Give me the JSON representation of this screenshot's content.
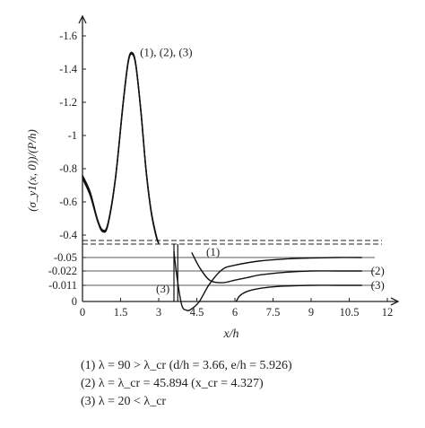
{
  "chart_data": {
    "type": "line",
    "title": "",
    "xlabel": "x/h",
    "ylabel": "(σ_y1(x, 0))/(P/h)",
    "xlim": [
      0,
      12
    ],
    "x_ticks": [
      "0",
      "1.5",
      "3",
      "4.5",
      "6",
      "7.5",
      "9",
      "10.5",
      "12"
    ],
    "y_ticks_upper": [
      "-1.6",
      "-1.4",
      "-1.2",
      "-1",
      "-0.8",
      "-0.6",
      "-0.4"
    ],
    "y_ticks_lower": [
      "-0.05",
      "-0.022",
      "-0.011",
      "0"
    ],
    "y_axis_note": "broken y axis: upper segment runs -1.6 to -0.4 (linear), lower segment shows -0.05, -0.022, -0.011, 0",
    "peak_annotation": "(1), (2), (3)",
    "series": [
      {
        "name": "(1)",
        "upper_x": [
          0,
          0.3,
          0.6,
          0.8,
          1.0,
          1.3,
          1.6,
          1.8,
          1.95,
          2.1,
          2.3,
          2.5,
          2.7,
          2.9,
          3.0
        ],
        "upper_y": [
          -0.76,
          -0.66,
          -0.49,
          -0.43,
          -0.47,
          -0.75,
          -1.2,
          -1.45,
          -1.5,
          -1.43,
          -1.15,
          -0.8,
          -0.55,
          -0.4,
          -0.35
        ],
        "lower_x": [
          3.6,
          3.7,
          3.9,
          4.1,
          4.3,
          4.6,
          5.0,
          5.5,
          6.0,
          7.0,
          8.0,
          9.0,
          10.0,
          11.0
        ],
        "lower_y": [
          -0.06,
          -0.02,
          0.002,
          0.006,
          0.005,
          0.0,
          -0.012,
          -0.025,
          -0.034,
          -0.043,
          -0.047,
          -0.049,
          -0.05,
          -0.05
        ]
      },
      {
        "name": "(2)",
        "upper_x": [
          0,
          0.3,
          0.6,
          0.8,
          1.0,
          1.3,
          1.6,
          1.8,
          1.95,
          2.1,
          2.3,
          2.5,
          2.7,
          2.9,
          3.0
        ],
        "upper_y": [
          -0.74,
          -0.64,
          -0.48,
          -0.42,
          -0.46,
          -0.74,
          -1.19,
          -1.44,
          -1.49,
          -1.42,
          -1.14,
          -0.79,
          -0.54,
          -0.39,
          -0.35
        ],
        "lower_x": [
          4.3,
          4.6,
          5.0,
          5.5,
          6.0,
          6.5,
          7.0,
          8.0,
          9.0,
          10.0,
          11.0
        ],
        "lower_y": [
          -0.058,
          -0.03,
          -0.015,
          -0.013,
          -0.015,
          -0.017,
          -0.019,
          -0.021,
          -0.022,
          -0.022,
          -0.022
        ]
      },
      {
        "name": "(3)",
        "upper_x": [
          0,
          0.3,
          0.6,
          0.8,
          1.0,
          1.3,
          1.6,
          1.8,
          1.95,
          2.1,
          2.3,
          2.5,
          2.7,
          2.9,
          3.0
        ],
        "upper_y": [
          -0.75,
          -0.65,
          -0.485,
          -0.425,
          -0.465,
          -0.745,
          -1.195,
          -1.445,
          -1.495,
          -1.425,
          -1.145,
          -0.795,
          -0.545,
          -0.395,
          -0.35
        ],
        "lower_x": [
          6.05,
          6.2,
          6.5,
          7.0,
          7.5,
          8.0,
          9.0,
          10.0,
          11.0
        ],
        "lower_y": [
          0.0,
          -0.004,
          -0.007,
          -0.009,
          -0.01,
          -0.0105,
          -0.011,
          -0.011,
          -0.011
        ]
      }
    ],
    "series_labels": [
      "(1)",
      "(2)",
      "(3)"
    ],
    "caption": [
      "(1) λ = 90 > λ_cr (d/h = 3.66, e/h = 5.926)",
      "(2) λ = λ_cr = 45.894 (x_cr = 4.327)",
      "(3) λ = 20 < λ_cr"
    ]
  }
}
